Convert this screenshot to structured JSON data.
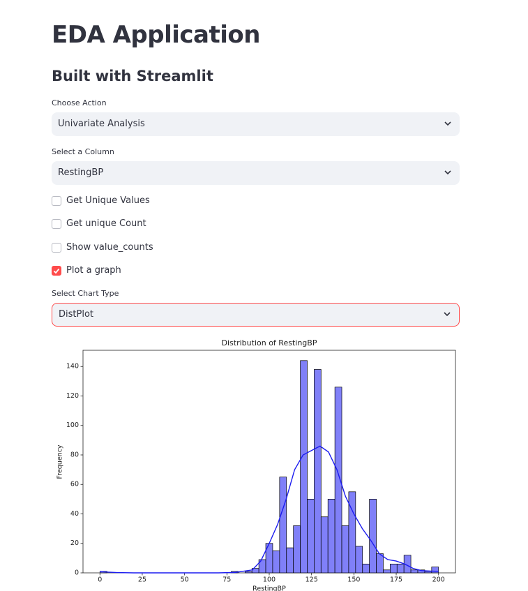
{
  "header": {
    "title": "EDA Application",
    "subtitle": "Built with Streamlit"
  },
  "form": {
    "action_label": "Choose Action",
    "action_value": "Univariate Analysis",
    "column_label": "Select a Column",
    "column_value": "RestingBP",
    "checkboxes": [
      {
        "label": "Get Unique Values",
        "checked": false
      },
      {
        "label": "Get unique Count",
        "checked": false
      },
      {
        "label": "Show value_counts",
        "checked": false
      },
      {
        "label": "Plot a graph",
        "checked": true
      }
    ],
    "chart_type_label": "Select Chart Type",
    "chart_type_value": "DistPlot"
  },
  "chart_data": {
    "type": "histogram",
    "title": "Distribution of RestingBP",
    "x_label": "RestingBP",
    "y_label": "Frequency",
    "bins": [
      0,
      4.08,
      8.16,
      12.24,
      16.33,
      20.41,
      24.49,
      28.57,
      32.65,
      36.73,
      40.82,
      44.9,
      48.98,
      53.06,
      57.14,
      61.22,
      65.31,
      69.39,
      73.47,
      77.55,
      81.63,
      85.71,
      89.8,
      93.88,
      97.96,
      102.04,
      106.12,
      110.2,
      114.29,
      118.37,
      122.45,
      126.53,
      130.61,
      134.69,
      138.78,
      142.86,
      146.94,
      151.02,
      155.1,
      159.18,
      163.27,
      167.35,
      171.43,
      175.51,
      179.59,
      183.67,
      187.76,
      191.84,
      195.92,
      200
    ],
    "values": [
      1,
      0,
      0,
      0,
      0,
      0,
      0,
      0,
      0,
      0,
      0,
      0,
      0,
      0,
      0,
      0,
      0,
      0,
      0,
      1,
      0,
      1,
      3,
      9,
      20,
      15,
      65,
      17,
      32,
      144,
      50,
      138,
      38,
      50,
      126,
      32,
      55,
      18,
      6,
      50,
      13,
      2,
      6,
      6,
      12,
      2,
      2,
      1,
      4
    ],
    "color": "#8080f8",
    "edgecolor": "#000000",
    "kde": {
      "color": "#1c1cf0",
      "x": [
        0,
        5,
        10,
        20,
        70,
        80,
        90,
        95,
        100,
        105,
        110,
        115,
        120,
        125,
        130,
        135,
        140,
        145,
        150,
        155,
        160,
        165,
        170,
        175,
        180,
        185,
        190,
        200
      ],
      "values": [
        1,
        0.5,
        0.2,
        0,
        0,
        0.3,
        2,
        8,
        20,
        33,
        50,
        70,
        80,
        83,
        86,
        82,
        70,
        52,
        40,
        30,
        22,
        13,
        9,
        8,
        6,
        3,
        1.5,
        1
      ]
    },
    "xlim": [
      -10,
      210
    ],
    "ylim": [
      0,
      151
    ],
    "xticks": [
      0,
      25,
      50,
      75,
      100,
      125,
      150,
      175,
      200
    ],
    "yticks": [
      0,
      20,
      40,
      60,
      80,
      100,
      120,
      140
    ]
  }
}
